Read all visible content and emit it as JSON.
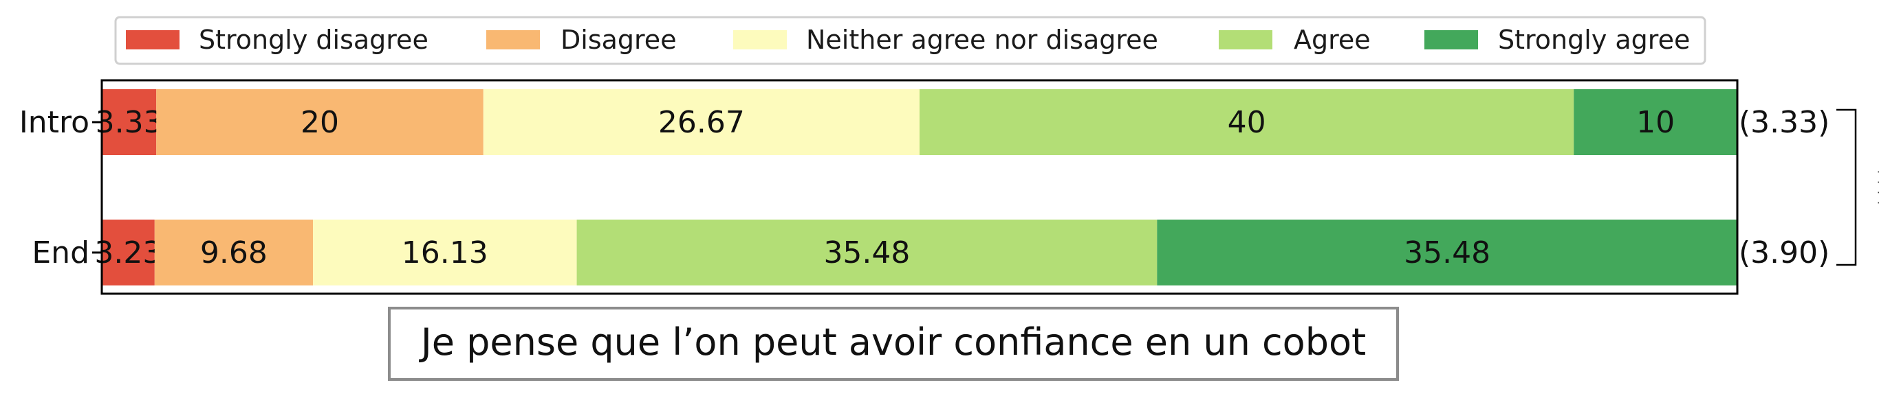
{
  "chart_data": {
    "type": "bar",
    "orientation": "horizontal",
    "stacked": true,
    "categories": [
      "Intro",
      "End"
    ],
    "series": [
      {
        "name": "Strongly disagree",
        "color": "#e34f3d",
        "values": [
          3.33,
          3.23
        ],
        "labels": [
          "3.33",
          "3.23"
        ]
      },
      {
        "name": "Disagree",
        "color": "#f9b872",
        "values": [
          20,
          9.68
        ],
        "labels": [
          "20",
          "9.68"
        ]
      },
      {
        "name": "Neither agree nor disagree",
        "color": "#fdfbbd",
        "values": [
          26.67,
          16.13
        ],
        "labels": [
          "26.67",
          "16.13"
        ]
      },
      {
        "name": "Agree",
        "color": "#b3de76",
        "values": [
          40,
          35.48
        ],
        "labels": [
          "40",
          "35.48"
        ]
      },
      {
        "name": "Strongly agree",
        "color": "#43a85b",
        "values": [
          10,
          35.48
        ],
        "labels": [
          "10",
          "35.48"
        ]
      }
    ],
    "means": [
      "(3.33)",
      "(3.90)"
    ],
    "significance": "****",
    "title": "Je pense que l’on peut avoir confiance en un cobot",
    "xlim": [
      0,
      100
    ],
    "legend_position": "top",
    "grid": false
  }
}
